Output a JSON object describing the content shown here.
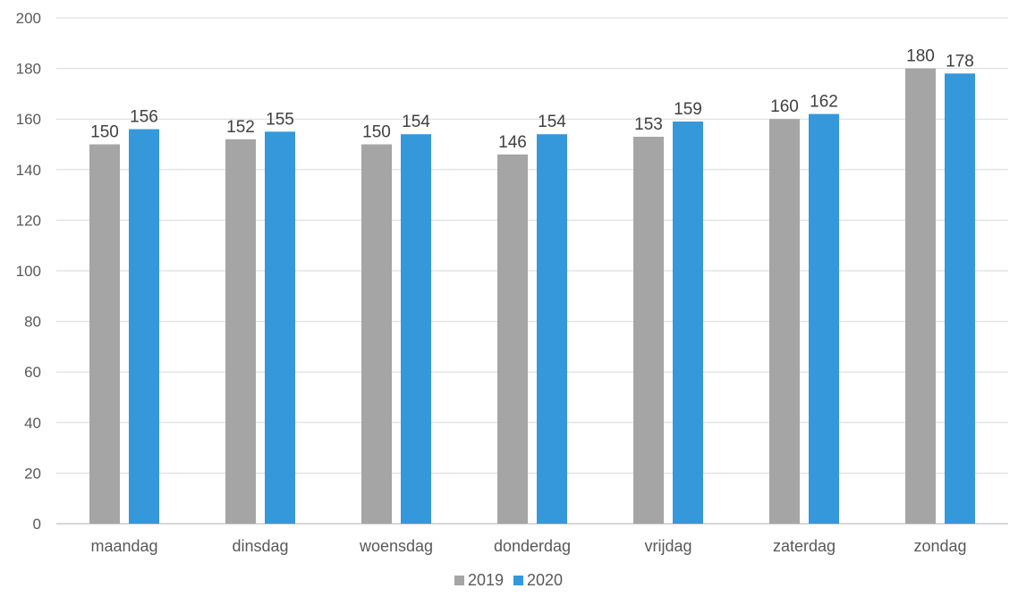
{
  "chart_data": {
    "type": "bar",
    "title": "",
    "xlabel": "",
    "ylabel": "",
    "categories": [
      "maandag",
      "dinsdag",
      "woensdag",
      "donderdag",
      "vrijdag",
      "zaterdag",
      "zondag"
    ],
    "series": [
      {
        "name": "2019",
        "color": "#a5a5a5",
        "values": [
          150,
          152,
          150,
          146,
          153,
          160,
          180
        ]
      },
      {
        "name": "2020",
        "color": "#3498db",
        "values": [
          156,
          155,
          154,
          154,
          159,
          162,
          178
        ]
      }
    ],
    "ylim": [
      0,
      200
    ],
    "yticks": [
      0,
      20,
      40,
      60,
      80,
      100,
      120,
      140,
      160,
      180,
      200
    ],
    "grid": true,
    "legend_position": "bottom-center",
    "data_labels": true
  }
}
